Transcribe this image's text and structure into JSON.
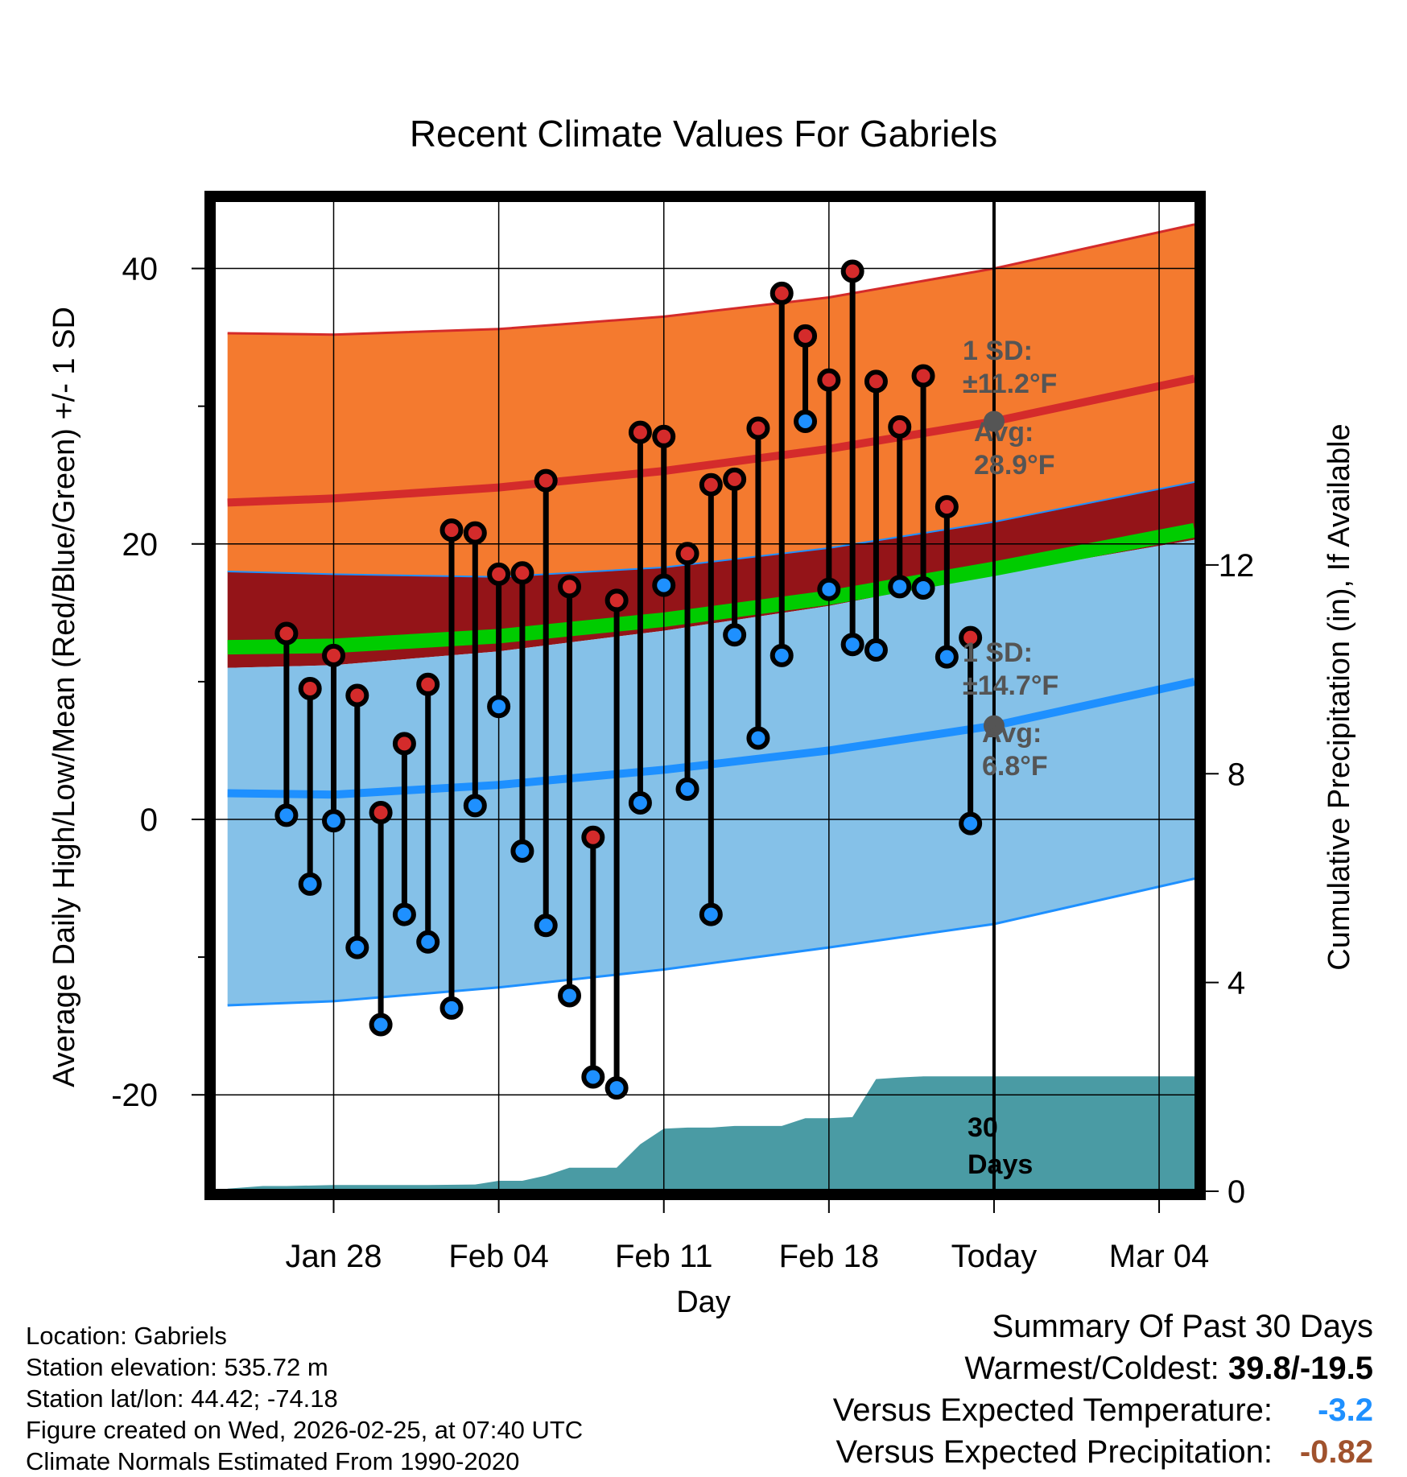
{
  "title": "Recent Climate Values For Gabriels",
  "colors": {
    "high_band": "#f47a2f",
    "high_band_edge": "#d42b2b",
    "high_avg_line": "#d42b2b",
    "overlap_band": "#941418",
    "mean_band": "#00cc00",
    "low_band": "#85c1e8",
    "low_band_edge": "#1e90ff",
    "low_avg_line": "#1e90ff",
    "high_marker": "#d42b2b",
    "low_marker": "#1e90ff",
    "precip": "#4a9ba4",
    "annotation": "#555555",
    "temp_diff": "#1e90ff",
    "precip_diff": "#a0522d"
  },
  "chart_data": {
    "type": "line",
    "title": "Recent Climate Values For Gabriels",
    "xlabel": "Day",
    "ylabel": "Average Daily High/Low/Mean (Red/Blue/Green) +/- 1 SD",
    "y2label": "Cumulative Precipitation (in), If Available",
    "xlim_days": [
      -33,
      8.5
    ],
    "ylim": [
      -27,
      45
    ],
    "y2lim": [
      0,
      19
    ],
    "yticks": [
      "40",
      "20",
      "0",
      "-20"
    ],
    "y2ticks": [
      "12",
      "8",
      "4",
      "0"
    ],
    "x_ticks": [
      {
        "day": -28,
        "label": "Jan 28"
      },
      {
        "day": -21,
        "label": "Feb 04"
      },
      {
        "day": -14,
        "label": "Feb 11"
      },
      {
        "day": -7,
        "label": "Feb 18"
      },
      {
        "day": 0,
        "label": "Today"
      },
      {
        "day": 7,
        "label": "Mar 04"
      }
    ],
    "today_day": 0,
    "normals": {
      "days": [
        -32.5,
        -28,
        -21,
        -14,
        -7,
        0,
        8.5
      ],
      "high_avg": [
        23.0,
        23.3,
        24.1,
        25.3,
        26.9,
        28.9,
        32.0
      ],
      "high_upper": [
        35.3,
        35.2,
        35.6,
        36.5,
        37.9,
        40.0,
        43.2
      ],
      "high_lower": [
        18.0,
        17.8,
        17.6,
        18.3,
        19.7,
        21.6,
        24.5
      ],
      "mean_avg": [
        12.5,
        12.6,
        13.3,
        14.5,
        16.1,
        18.2,
        21.0
      ],
      "low_upper": [
        11.0,
        11.2,
        12.2,
        13.7,
        15.5,
        17.8,
        20.3
      ],
      "low_avg": [
        1.9,
        1.8,
        2.5,
        3.6,
        5.0,
        6.8,
        10.0
      ],
      "low_lower": [
        -13.5,
        -13.2,
        -12.2,
        -10.9,
        -9.3,
        -7.6,
        -4.3
      ]
    },
    "sd_high": "±11.2°F",
    "sd_low": "±14.7°F",
    "avg_high": "28.9°F",
    "avg_low": "6.8°F",
    "avg_high_value": 28.9,
    "avg_low_value": 6.8,
    "observed": [
      {
        "day": -30,
        "high": 13.5,
        "low": 0.3
      },
      {
        "day": -29,
        "high": 9.5,
        "low": -4.7
      },
      {
        "day": -28,
        "high": 11.9,
        "low": -0.1
      },
      {
        "day": -27,
        "high": 9.0,
        "low": -9.3
      },
      {
        "day": -26,
        "high": 0.5,
        "low": -14.9
      },
      {
        "day": -25,
        "high": 5.5,
        "low": -6.9
      },
      {
        "day": -24,
        "high": 9.8,
        "low": -8.9
      },
      {
        "day": -23,
        "high": 21.0,
        "low": -13.7
      },
      {
        "day": -22,
        "high": 20.8,
        "low": 1.0
      },
      {
        "day": -21,
        "high": 17.8,
        "low": 8.2
      },
      {
        "day": -20,
        "high": 17.9,
        "low": -2.3
      },
      {
        "day": -19,
        "high": 24.6,
        "low": -7.7
      },
      {
        "day": -18,
        "high": 16.9,
        "low": -12.8
      },
      {
        "day": -17,
        "high": -1.3,
        "low": -18.7
      },
      {
        "day": -16,
        "high": 15.9,
        "low": -19.5
      },
      {
        "day": -15,
        "high": 28.1,
        "low": 1.2
      },
      {
        "day": -14,
        "high": 27.8,
        "low": 17.0
      },
      {
        "day": -13,
        "high": 19.3,
        "low": 2.2
      },
      {
        "day": -12,
        "high": 24.3,
        "low": -6.9
      },
      {
        "day": -11,
        "high": 24.7,
        "low": 13.4
      },
      {
        "day": -10,
        "high": 28.4,
        "low": 5.9
      },
      {
        "day": -9,
        "high": 38.2,
        "low": 11.9
      },
      {
        "day": -8,
        "high": 35.1,
        "low": 28.9
      },
      {
        "day": -7,
        "high": 31.9,
        "low": 16.7
      },
      {
        "day": -6,
        "high": 39.8,
        "low": 12.7
      },
      {
        "day": -5,
        "high": 31.8,
        "low": 12.3
      },
      {
        "day": -4,
        "high": 28.5,
        "low": 16.9
      },
      {
        "day": -3,
        "high": 32.2,
        "low": 16.8
      },
      {
        "day": -2,
        "high": 22.7,
        "low": 11.8
      },
      {
        "day": -1,
        "high": 13.2,
        "low": -0.3
      }
    ],
    "precip_cumulative": {
      "days": [
        -32.5,
        -31,
        -30,
        -28,
        -26,
        -24,
        -22,
        -21,
        -20,
        -19,
        -18,
        -17,
        -16,
        -15,
        -14,
        -13,
        -12,
        -11,
        -10,
        -9,
        -8,
        -7,
        -6,
        -5,
        -4,
        -3,
        -2,
        -1,
        0,
        8.5
      ],
      "values": [
        0.05,
        0.1,
        0.1,
        0.12,
        0.12,
        0.12,
        0.13,
        0.2,
        0.2,
        0.3,
        0.45,
        0.45,
        0.45,
        0.9,
        1.2,
        1.22,
        1.22,
        1.25,
        1.25,
        1.25,
        1.4,
        1.4,
        1.42,
        2.15,
        2.18,
        2.2,
        2.2,
        2.2,
        2.2,
        2.2
      ]
    },
    "precip_window_label": [
      "30",
      "Days"
    ]
  },
  "footer": {
    "location": "Location: Gabriels",
    "elevation": "Station elevation: 535.72 m",
    "latlon": "Station lat/lon: 44.42; -74.18",
    "created": "Figure created on Wed, 2026-02-25, at 07:40 UTC",
    "normals": "Climate Normals Estimated From 1990-2020"
  },
  "summary": {
    "heading": "Summary Of Past 30 Days",
    "warmest_label": "Warmest/Coldest: ",
    "warmest_value": "39.8/-19.5",
    "temp_label": "Versus Expected Temperature:",
    "temp_value": "-3.2",
    "precip_label": "Versus Expected Precipitation:",
    "precip_value": "-0.82"
  }
}
